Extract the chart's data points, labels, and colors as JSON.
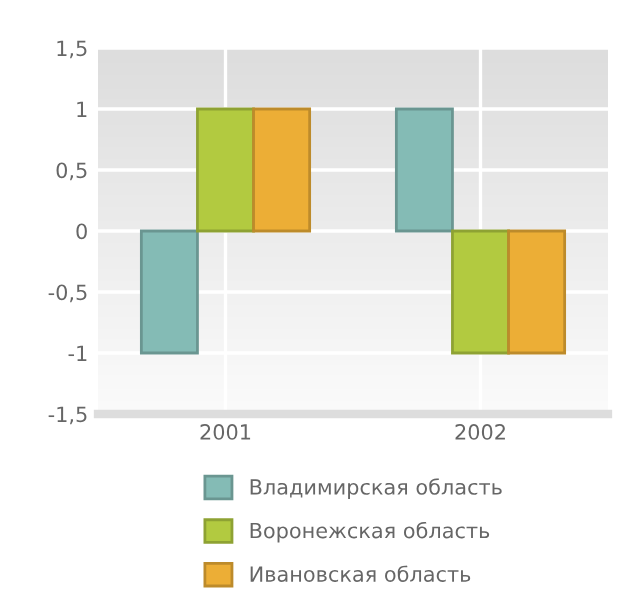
{
  "chart_data": {
    "type": "bar",
    "categories": [
      "2001",
      "2002"
    ],
    "series": [
      {
        "name": "Владимирская область",
        "color": "#84bbb5",
        "values": [
          -1,
          1
        ]
      },
      {
        "name": "Воронежская область",
        "color": "#b2ca40",
        "values": [
          1,
          -1
        ]
      },
      {
        "name": "Ивановская область",
        "color": "#ecae36",
        "values": [
          1,
          -1
        ]
      }
    ],
    "ylim": [
      -1.5,
      1.5
    ],
    "yticks": [
      {
        "value": -1.5,
        "label": "-1,5"
      },
      -1,
      {
        "value": -0.5,
        "label": "-0,5"
      },
      0,
      {
        "value": 0.5,
        "label": "0,5"
      },
      1,
      {
        "value": 1.5,
        "label": "1,5"
      }
    ],
    "grid": true,
    "legend": "bottom"
  }
}
